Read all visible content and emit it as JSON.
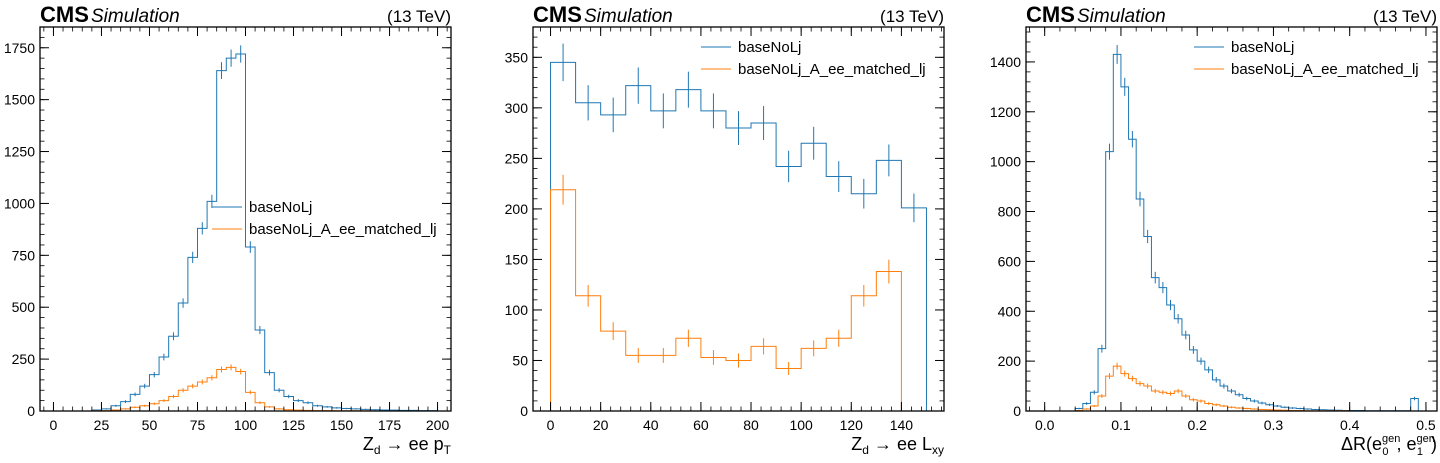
{
  "colors": {
    "series0": "#1f77b4",
    "series1": "#ff7f0e"
  },
  "chart_data": [
    {
      "type": "histogram",
      "experiment": "CMS",
      "label": "Simulation",
      "energy": "(13 TeV)",
      "xlabel": "Z_d → ee p_T",
      "xlabel_main": "Z",
      "xlabel_sub": "d",
      "xlabel_mid": " → ee p",
      "xlabel_sub2": "T",
      "xlim": [
        -7,
        207
      ],
      "ylim": [
        0,
        1850
      ],
      "xticks": [
        0,
        25,
        50,
        75,
        100,
        125,
        150,
        175,
        200
      ],
      "yticks": [
        0,
        250,
        500,
        750,
        1000,
        1250,
        1500,
        1750
      ],
      "bin_edges": [
        0,
        5,
        10,
        15,
        20,
        25,
        30,
        35,
        40,
        45,
        50,
        55,
        60,
        65,
        70,
        75,
        80,
        85,
        90,
        95,
        100,
        105,
        110,
        115,
        120,
        125,
        130,
        135,
        140,
        145,
        150,
        155,
        160,
        165,
        170,
        175,
        180,
        185,
        190,
        195,
        200
      ],
      "legend": {
        "position": "center-right"
      },
      "series": [
        {
          "name": "baseNoLj",
          "values": [
            0,
            0,
            0,
            0,
            5,
            10,
            25,
            45,
            80,
            120,
            175,
            260,
            360,
            520,
            740,
            880,
            1010,
            1640,
            1700,
            1720,
            790,
            390,
            185,
            100,
            70,
            50,
            40,
            25,
            20,
            15,
            12,
            10,
            8,
            6,
            5,
            4,
            3,
            3,
            2,
            2
          ]
        },
        {
          "name": "baseNoLj_A_ee_matched_lj",
          "values": [
            0,
            0,
            0,
            0,
            1,
            2,
            5,
            10,
            18,
            25,
            35,
            50,
            70,
            100,
            120,
            140,
            160,
            200,
            210,
            190,
            90,
            40,
            20,
            10,
            6,
            4,
            3,
            2,
            2,
            1,
            1,
            1,
            1,
            0,
            0,
            0,
            0,
            0,
            0,
            0
          ]
        }
      ]
    },
    {
      "type": "histogram",
      "experiment": "CMS",
      "label": "Simulation",
      "energy": "(13 TeV)",
      "xlabel": "Z_d → ee L_xy",
      "xlabel_main": "Z",
      "xlabel_sub": "d",
      "xlabel_mid": " → ee L",
      "xlabel_sub2": "xy",
      "xlim": [
        -7,
        157
      ],
      "ylim": [
        0,
        380
      ],
      "xticks": [
        0,
        20,
        40,
        60,
        80,
        100,
        120,
        140
      ],
      "yticks": [
        0,
        50,
        100,
        150,
        200,
        250,
        300,
        350
      ],
      "bin_edges": [
        0,
        10,
        20,
        30,
        40,
        50,
        60,
        70,
        80,
        90,
        100,
        110,
        120,
        130,
        140,
        150
      ],
      "legend": {
        "position": "top-right"
      },
      "series": [
        {
          "name": "baseNoLj",
          "values": [
            345,
            305,
            293,
            322,
            297,
            318,
            297,
            280,
            285,
            242,
            265,
            232,
            215,
            248,
            201
          ]
        },
        {
          "name": "baseNoLj_A_ee_matched_lj",
          "values": [
            219,
            114,
            79,
            55,
            55,
            72,
            53,
            50,
            64,
            42,
            62,
            72,
            114,
            138,
            0
          ]
        }
      ]
    },
    {
      "type": "histogram",
      "experiment": "CMS",
      "label": "Simulation",
      "energy": "(13 TeV)",
      "xlabel": "ΔR(e_0^gen, e_1^gen)",
      "xlim": [
        -0.0245,
        0.5145
      ],
      "ylim": [
        0,
        1540
      ],
      "xticks": [
        0.0,
        0.1,
        0.2,
        0.3,
        0.4,
        0.5
      ],
      "xtick_labels": [
        "0.0",
        "0.1",
        "0.2",
        "0.3",
        "0.4",
        "0.5"
      ],
      "yticks": [
        0,
        200,
        400,
        600,
        800,
        1000,
        1200,
        1400
      ],
      "bin_edges": [
        0.0,
        0.01,
        0.02,
        0.03,
        0.04,
        0.05,
        0.06,
        0.07,
        0.08,
        0.09,
        0.1,
        0.11,
        0.12,
        0.13,
        0.14,
        0.15,
        0.16,
        0.17,
        0.18,
        0.19,
        0.2,
        0.21,
        0.22,
        0.23,
        0.24,
        0.25,
        0.26,
        0.27,
        0.28,
        0.29,
        0.3,
        0.31,
        0.32,
        0.33,
        0.34,
        0.35,
        0.36,
        0.37,
        0.38,
        0.39,
        0.4,
        0.41,
        0.42,
        0.43,
        0.44,
        0.45,
        0.46,
        0.47,
        0.48,
        0.49
      ],
      "legend": {
        "position": "top-right"
      },
      "series": [
        {
          "name": "baseNoLj",
          "values": [
            0,
            0,
            0,
            0,
            10,
            30,
            75,
            250,
            1040,
            1430,
            1300,
            1090,
            850,
            700,
            535,
            495,
            425,
            370,
            305,
            245,
            200,
            165,
            125,
            100,
            80,
            65,
            50,
            40,
            32,
            25,
            20,
            15,
            12,
            10,
            8,
            6,
            5,
            4,
            3,
            2,
            2,
            2,
            1,
            1,
            1,
            1,
            1,
            1,
            50
          ]
        },
        {
          "name": "baseNoLj_A_ee_matched_lj",
          "values": [
            0,
            0,
            0,
            0,
            2,
            8,
            20,
            60,
            140,
            180,
            150,
            130,
            110,
            100,
            80,
            75,
            70,
            80,
            60,
            45,
            40,
            30,
            25,
            20,
            15,
            12,
            10,
            8,
            6,
            5,
            4,
            3,
            2,
            2,
            1,
            1,
            1,
            1,
            1,
            1,
            0,
            0,
            0,
            0,
            0,
            0,
            0,
            0,
            0
          ]
        }
      ]
    }
  ]
}
